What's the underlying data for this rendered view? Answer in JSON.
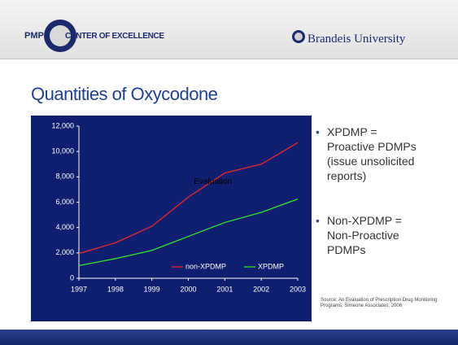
{
  "header": {
    "logo_left": "PMP",
    "logo_center": "CENTER OF EXCELLENCE",
    "university": "Brandeis University"
  },
  "title": "Quantities of Oxycodone",
  "bullets": [
    "XPDMP = Proactive PDMPs (issue unsolicited reports)",
    "Non-XPDMP = Non-Proactive PDMPs"
  ],
  "source": "Source: An Evaluation of Prescription Drug Monitoring Programs; Simeone Associates; 2006",
  "chart_data": {
    "type": "line",
    "categories": [
      "1997",
      "1998",
      "1999",
      "2000",
      "2001",
      "2002",
      "2003"
    ],
    "series": [
      {
        "name": "non-XPDMP",
        "color": "#e8282b",
        "values": [
          1950,
          2800,
          4100,
          6400,
          8300,
          9000,
          10700
        ]
      },
      {
        "name": "XPDMP",
        "color": "#2ee82e",
        "values": [
          1000,
          1550,
          2200,
          3300,
          4400,
          5200,
          6250
        ]
      }
    ],
    "annotation": "Evaluation",
    "ylim": [
      0,
      12000
    ],
    "yticks": [
      0,
      {
        "value": 2000,
        "label": "2,000"
      },
      {
        "value": 4000,
        "label": "4,000"
      },
      {
        "value": 6000,
        "label": "6,000"
      },
      {
        "value": 8000,
        "label": "8,000"
      },
      {
        "value": 10000,
        "label": "10,000"
      },
      {
        "value": 12000,
        "label": "12,000"
      }
    ],
    "background": "#0f1e6e",
    "legend": "lower right"
  }
}
